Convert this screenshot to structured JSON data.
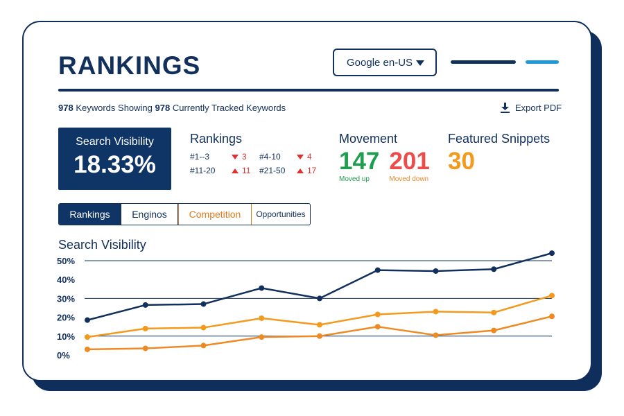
{
  "header": {
    "title": "RANKINGS",
    "engine_select": "Google en-US"
  },
  "summary": {
    "keywords_count": "978",
    "keywords_text": "Keywords Showing",
    "tracked_count": "978",
    "tracked_text": "Currently Tracked Keywords",
    "export_label": "Export PDF"
  },
  "visibility": {
    "label": "Search Visibility",
    "value": "18.33%"
  },
  "rankings": {
    "title": "Rankings",
    "rows": [
      {
        "range": "#1--3",
        "value": "3",
        "dir": "down"
      },
      {
        "range": "#4-10",
        "value": "4",
        "dir": "down"
      },
      {
        "range": "#11-20",
        "value": "11",
        "dir": "up"
      },
      {
        "range": "#21-50",
        "value": "17",
        "dir": "up"
      }
    ]
  },
  "movement": {
    "title": "Movement",
    "up_value": "147",
    "up_label": "Moved up",
    "down_value": "201",
    "down_label": "Moved down"
  },
  "snippets": {
    "title": "Featured Snippets",
    "value": "30"
  },
  "tabs": [
    {
      "label": "Rankings",
      "active": true
    },
    {
      "label": "Enginos",
      "active": false
    },
    {
      "label": "Competition",
      "active": false
    },
    {
      "label": "Opportunities",
      "active": false
    }
  ],
  "chart_data": {
    "type": "line",
    "title": "Search Visibility",
    "ylim": [
      0,
      50
    ],
    "yticks": [
      "50%",
      "40%",
      "30%",
      "20%",
      "10%",
      "0%"
    ],
    "grid": true,
    "colors": [
      "#12305c",
      "#f39a1c",
      "#ee8a24"
    ],
    "series": [
      {
        "values": [
          18.5,
          26.5,
          27,
          35.5,
          30,
          45,
          44.5,
          45.5,
          54
        ]
      },
      {
        "values": [
          9.5,
          14,
          14.5,
          19.5,
          16,
          21.5,
          23,
          22.5,
          31.5
        ]
      },
      {
        "values": [
          3,
          3.5,
          5,
          9.5,
          10,
          15,
          10.5,
          13,
          20.5
        ]
      }
    ]
  },
  "colors": {
    "navy": "#12305c",
    "accent_blue": "#1f9ad6",
    "green": "#1e9e4e",
    "red": "#ee4b4b",
    "orange": "#f39a1c"
  }
}
